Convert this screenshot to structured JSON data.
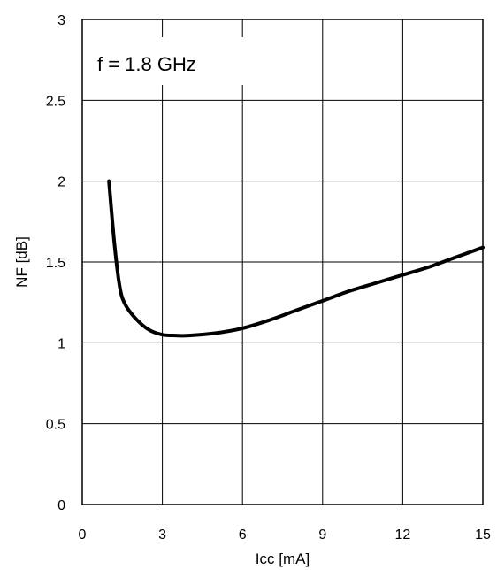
{
  "chart_data": {
    "type": "line",
    "title": "",
    "xlabel": "Icc [mA]",
    "ylabel": "NF [dB]",
    "xlim": [
      0,
      15
    ],
    "ylim": [
      0,
      3
    ],
    "xticks": [
      0,
      3,
      6,
      9,
      12,
      15
    ],
    "yticks": [
      0,
      0.5,
      1,
      1.5,
      2,
      2.5,
      3
    ],
    "xtick_labels": [
      "0",
      "3",
      "6",
      "9",
      "12",
      "15"
    ],
    "ytick_labels": [
      "0",
      "0.5",
      "1",
      "1.5",
      "2",
      "2.5",
      "3"
    ],
    "grid": true,
    "annotation": "f = 1.8 GHz",
    "series": [
      {
        "color": "#000000",
        "x": [
          1.0,
          1.2,
          1.4,
          1.6,
          2.0,
          2.5,
          3.0,
          3.5,
          4.0,
          5.0,
          6.0,
          7.0,
          8.0,
          9.0,
          10.0,
          11.0,
          12.0,
          13.0,
          14.0,
          15.0
        ],
        "y": [
          2.0,
          1.62,
          1.35,
          1.24,
          1.15,
          1.08,
          1.05,
          1.045,
          1.045,
          1.06,
          1.09,
          1.14,
          1.2,
          1.26,
          1.32,
          1.37,
          1.42,
          1.47,
          1.53,
          1.59
        ]
      }
    ]
  }
}
